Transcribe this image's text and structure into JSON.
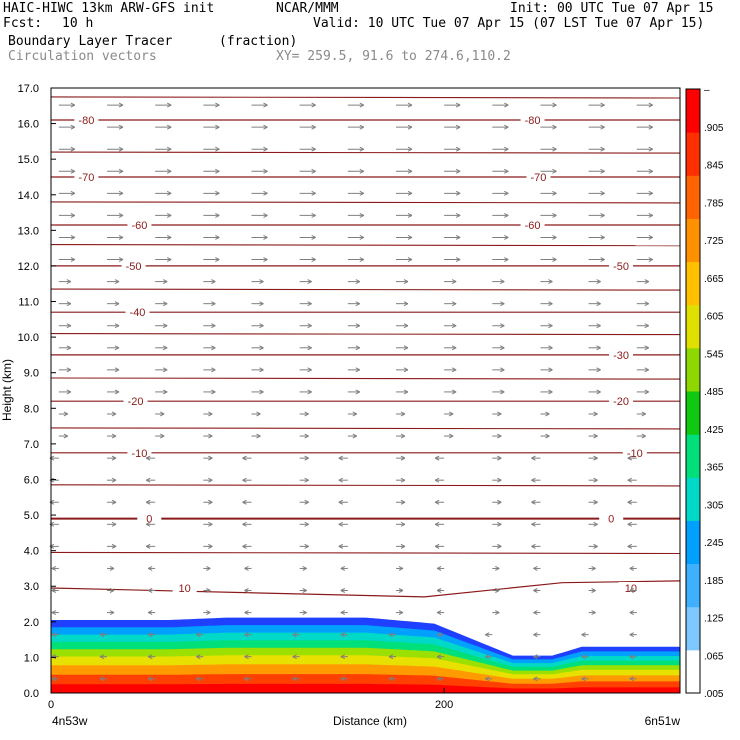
{
  "header": {
    "model": "HAIC-HIWC 13km ARW-GFS init",
    "institution": "NCAR/MMM",
    "init": "Init: 00 UTC Tue 07 Apr 15",
    "fcst_label": "Fcst:",
    "fcst_value": "10 h",
    "valid": "Valid: 10 UTC Tue 07 Apr 15 (07 LST Tue 07 Apr 15)",
    "field": "Boundary Layer Tracer",
    "units": "(fraction)",
    "vector_field": "Circulation vectors",
    "xy": "XY= 259.5, 91.6 to 274.6,110.2"
  },
  "colors": {
    "contour": "#8b1a1a",
    "vector": "#7f7f7f",
    "colorbar": [
      "#ffffff",
      "#7fc8ff",
      "#3fb0ff",
      "#00a0ff",
      "#00d8c8",
      "#00e07a",
      "#10c810",
      "#8cd800",
      "#e0e000",
      "#ffc000",
      "#ff9000",
      "#ff6400",
      "#ff3000",
      "#ff0000"
    ]
  },
  "chart_data": {
    "type": "contour",
    "title": "Boundary Layer Tracer",
    "units": "(fraction)",
    "xlabel": "Distance (km)",
    "ylabel": "Height (km)",
    "x_start_label": "4n53w",
    "x_end_label": "6n51w",
    "xlim": [
      0,
      320
    ],
    "xticks": [
      0,
      200
    ],
    "ylim": [
      0.0,
      17.0
    ],
    "yticks": [
      "0.0",
      "1.0",
      "2.0",
      "3.0",
      "4.0",
      "5.0",
      "6.0",
      "7.0",
      "8.0",
      "9.0",
      "10.0",
      "11.0",
      "12.0",
      "13.0",
      "14.0",
      "15.0",
      "16.0",
      "17.0"
    ],
    "colorbar_labels": [
      "–",
      ".905",
      ".845",
      ".785",
      ".725",
      ".665",
      ".605",
      ".545",
      ".485",
      ".425",
      ".365",
      ".305",
      ".245",
      ".185",
      ".125",
      ".065",
      ".005"
    ],
    "colorbar_range": [
      0.005,
      0.935
    ],
    "colorbar_step": 0.03,
    "boundary_layer_top_km": [
      [
        0,
        2.05
      ],
      [
        60,
        2.05
      ],
      [
        90,
        2.12
      ],
      [
        160,
        2.12
      ],
      [
        195,
        1.95
      ],
      [
        235,
        1.05
      ],
      [
        255,
        1.05
      ],
      [
        270,
        1.3
      ],
      [
        320,
        1.3
      ]
    ],
    "contour_labels": [
      {
        "level": "10",
        "x": [
          68,
          295
        ]
      },
      {
        "level": "0",
        "x": [
          50,
          285
        ]
      },
      {
        "level": "-10",
        "x": [
          45,
          297
        ]
      },
      {
        "level": "-20",
        "x": [
          43,
          290
        ]
      },
      {
        "level": "-30",
        "x": [
          290
        ]
      },
      {
        "level": "-40",
        "x": [
          44
        ]
      },
      {
        "level": "-50",
        "x": [
          42,
          290
        ]
      },
      {
        "level": "-60",
        "x": [
          45,
          245
        ]
      },
      {
        "level": "-70",
        "x": [
          18,
          248
        ]
      },
      {
        "level": "-80",
        "x": [
          18,
          245
        ]
      }
    ]
  }
}
